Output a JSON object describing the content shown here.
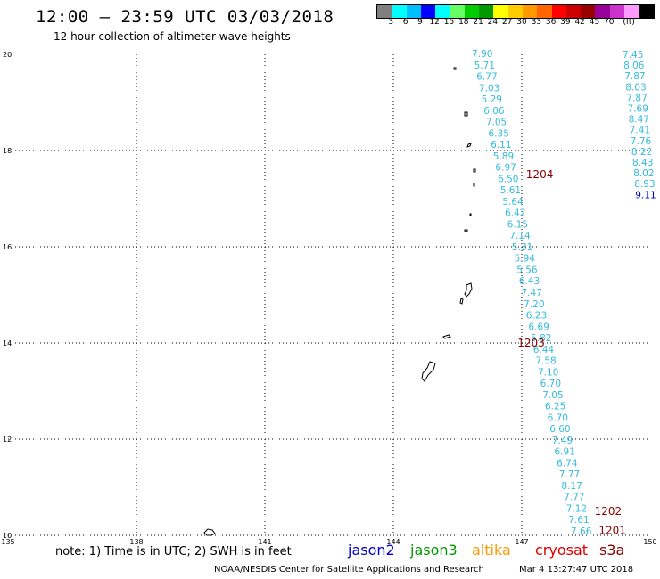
{
  "header": {
    "title": "12:00 – 23:59 UTC 03/03/2018",
    "subtitle": "12 hour collection of altimeter wave heights"
  },
  "colorbar": {
    "colors": [
      "#7f7f7f",
      "#00ffff",
      "#00bfff",
      "#0000ff",
      "#00ffff",
      "#66ff66",
      "#00cc00",
      "#009900",
      "#ffff00",
      "#ffcc00",
      "#ff9900",
      "#ff6600",
      "#ff0000",
      "#cc0000",
      "#990000",
      "#990099",
      "#cc33cc",
      "#ff99ff",
      "#000000"
    ],
    "labels": [
      "3",
      "6",
      "9",
      "12",
      "15",
      "18",
      "21",
      "24",
      "27",
      "30",
      "33",
      "36",
      "39",
      "42",
      "45",
      "70",
      "(ft)"
    ]
  },
  "axes": {
    "x_ticks": [
      "135",
      "138",
      "141",
      "144",
      "147",
      "150"
    ],
    "y_ticks": [
      "20",
      "18",
      "16",
      "14",
      "12",
      "10"
    ]
  },
  "tracks": [
    {
      "label": "1204",
      "lon": 147.1,
      "lat": 17.5
    },
    {
      "label": "1203",
      "lon": 146.9,
      "lat": 14.0
    },
    {
      "label": "1202",
      "lon": 148.7,
      "lat": 10.5
    },
    {
      "label": "1201",
      "lon": 148.8,
      "lat": 10.1
    }
  ],
  "track_a": {
    "color": "#33bbdd",
    "values": [
      "7.90",
      "5.71",
      "6.77",
      "7.03",
      "5.29",
      "6.06",
      "7.05",
      "6.35",
      "6.11",
      "5.89",
      "6.97",
      "6.50",
      "5.61",
      "5.64",
      "6.42",
      "6.15",
      "7.14",
      "5.31",
      "5.94",
      "5.56",
      "6.43",
      "7.47",
      "7.20",
      "6.23",
      "6.69",
      "5.82",
      "6.44",
      "7.58",
      "7.10",
      "6.70",
      "7.05",
      "6.25",
      "6.70",
      "6.60",
      "7.49",
      "6.91",
      "6.74",
      "7.77",
      "8.17",
      "7.77",
      "7.12",
      "7.61",
      "7.66"
    ]
  },
  "track_b": {
    "color": "#33bbdd",
    "values": [
      "7.45",
      "8.06",
      "7.87",
      "8.03",
      "7.87",
      "7.69",
      "8.47",
      "7.41",
      "7.76",
      "8.22",
      "8.43",
      "8.02",
      "8.93",
      "9.11"
    ]
  },
  "note": "note: 1) Time is in UTC; 2) SWH is in feet",
  "legend": [
    {
      "name": "jason2",
      "color": "#0000cc"
    },
    {
      "name": "jason3",
      "color": "#009900"
    },
    {
      "name": "altika",
      "color": "#ff9900"
    },
    {
      "name": "cryosat",
      "color": "#dd0000"
    },
    {
      "name": "s3a",
      "color": "#8b0000"
    }
  ],
  "footer": {
    "credit": "NOAA/NESDIS Center for Satellite Applications and Research",
    "timestamp": "Mar  4 13:27:47 UTC 2018"
  }
}
